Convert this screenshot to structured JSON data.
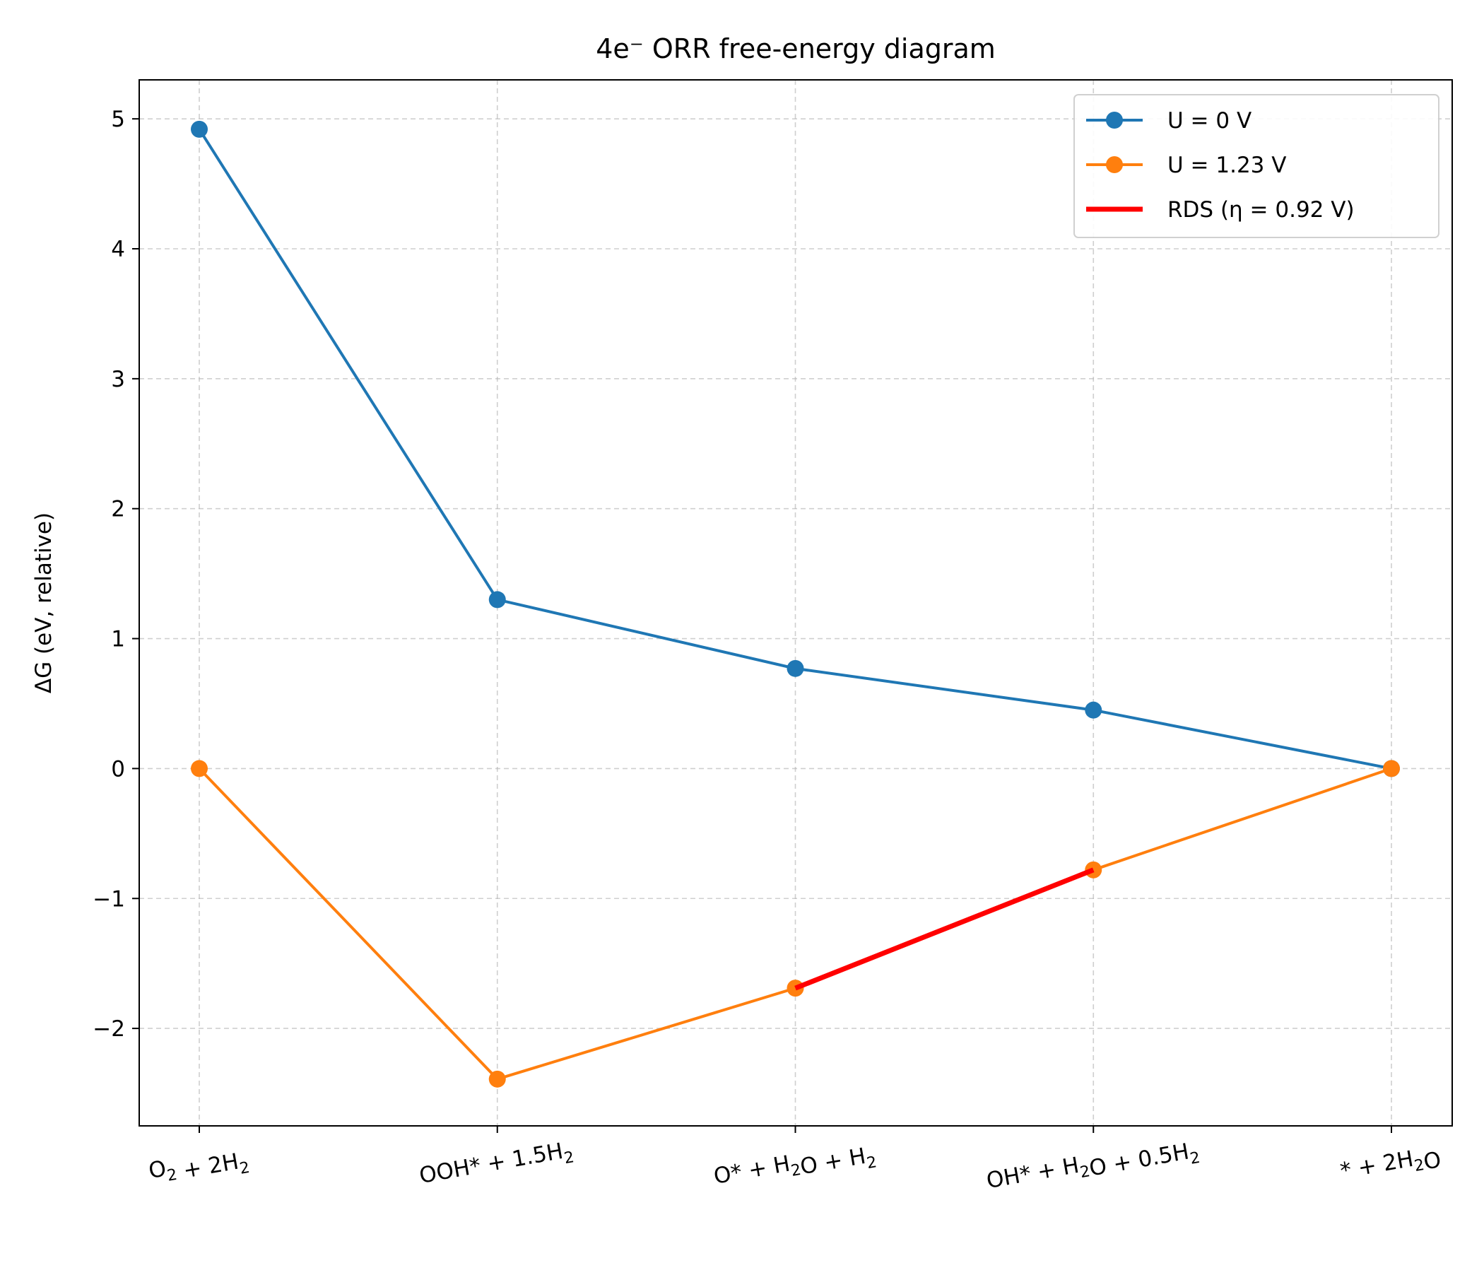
{
  "chart_data": {
    "type": "line",
    "title": "4e⁻ ORR free-energy diagram",
    "xlabel": "",
    "ylabel": "ΔG (eV, relative)",
    "categories": [
      {
        "base": "O",
        "parts": [
          [
            "O",
            false
          ],
          [
            "2",
            true
          ],
          [
            " + 2H",
            false
          ],
          [
            "2",
            true
          ]
        ]
      },
      {
        "base": "OOH",
        "parts": [
          [
            "OOH* + 1.5H",
            false
          ],
          [
            "2",
            true
          ]
        ]
      },
      {
        "base": "O*",
        "parts": [
          [
            "O* + H",
            false
          ],
          [
            "2",
            true
          ],
          [
            "O + H",
            false
          ],
          [
            "2",
            true
          ]
        ]
      },
      {
        "base": "OH*",
        "parts": [
          [
            "OH* + H",
            false
          ],
          [
            "2",
            true
          ],
          [
            "O + 0.5H",
            false
          ],
          [
            "2",
            true
          ]
        ]
      },
      {
        "base": "*",
        "parts": [
          [
            "* + 2H",
            false
          ],
          [
            "2",
            true
          ],
          [
            "O",
            false
          ]
        ]
      }
    ],
    "category_labels": [
      "O₂ + 2H₂",
      "OOH* + 1.5H₂",
      "O* + H₂O + H₂",
      "OH* + H₂O + 0.5H₂",
      "* + 2H₂O"
    ],
    "series": [
      {
        "name": "U = 0 V",
        "color": "#1f77b4",
        "values": [
          4.92,
          1.3,
          0.77,
          0.45,
          0.0
        ]
      },
      {
        "name": "U = 1.23 V",
        "color": "#ff7f0e",
        "values": [
          0.0,
          -2.39,
          -1.69,
          -0.78,
          0.0
        ]
      }
    ],
    "highlight": {
      "name": "RDS (η = 0.92 V)",
      "color": "#ff0000",
      "from_index": 2,
      "to_index": 3,
      "series_index": 1
    },
    "ylim": [
      -2.75,
      5.3
    ],
    "yticks": [
      -2,
      -1,
      0,
      1,
      2,
      3,
      4,
      5
    ],
    "ytick_labels": [
      "−2",
      "−1",
      "0",
      "1",
      "2",
      "3",
      "4",
      "5"
    ],
    "grid": true,
    "legend_position": "top-right"
  }
}
